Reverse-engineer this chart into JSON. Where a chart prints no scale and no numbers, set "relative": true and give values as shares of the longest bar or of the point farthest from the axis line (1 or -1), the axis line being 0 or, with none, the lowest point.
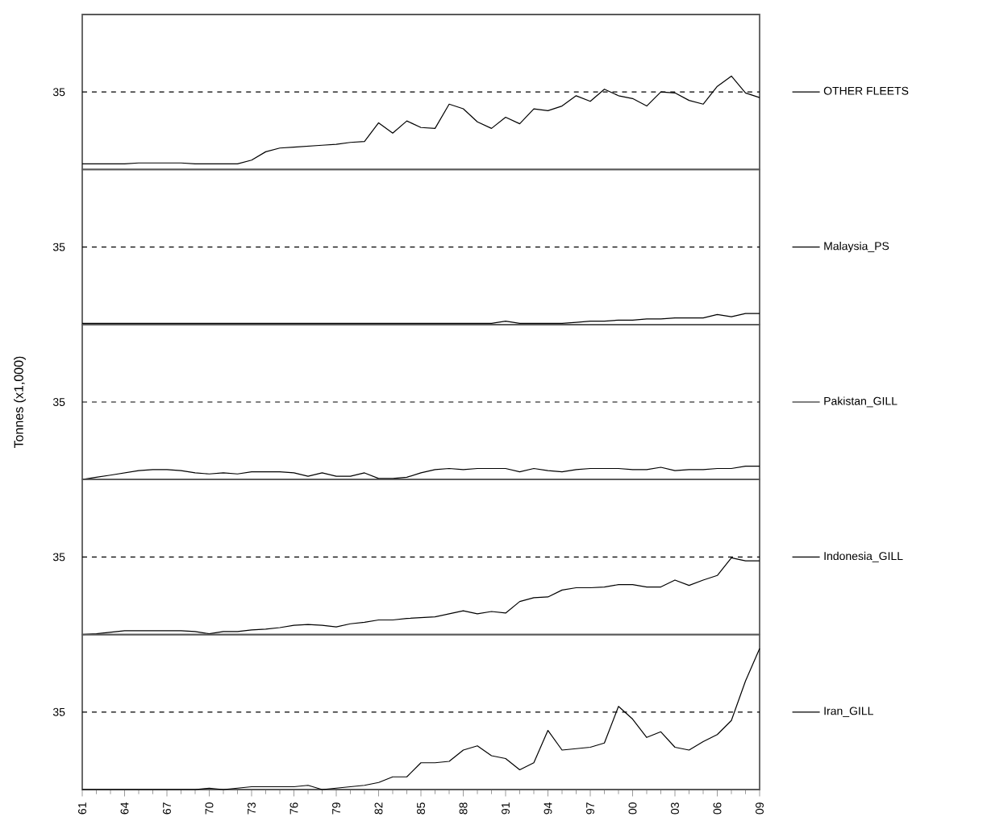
{
  "chart_data": [
    {
      "type": "line",
      "relative": true,
      "x": [
        1961,
        1962,
        1963,
        1964,
        1965,
        1966,
        1967,
        1968,
        1969,
        1970,
        1971,
        1972,
        1973,
        1974,
        1975,
        1976,
        1977,
        1978,
        1979,
        1980,
        1981,
        1982,
        1983,
        1984,
        1985,
        1986,
        1987,
        1988,
        1989,
        1990,
        1991,
        1992,
        1993,
        1994,
        1995,
        1996,
        1997,
        1998,
        1999,
        2000,
        2001,
        2002,
        2003,
        2004,
        2005,
        2006,
        2007,
        2008,
        2009
      ],
      "xlim": [
        1961,
        2009
      ],
      "legend": "right",
      "tick_labels": false,
      "marker": "none",
      "line_style": "solid",
      "annotations": [
        "35"
      ],
      "ref_lines": [
        {
          "axis": "y",
          "value": 0.83,
          "line_style": "dashed",
          "color": "#000000"
        }
      ],
      "series": [
        {
          "name": "OTHER FLEETS",
          "color": "#000000",
          "values": [
            0.06,
            0.06,
            0.06,
            0.06,
            0.07,
            0.07,
            0.07,
            0.07,
            0.06,
            0.06,
            0.06,
            0.06,
            0.1,
            0.19,
            0.23,
            0.24,
            0.25,
            0.26,
            0.27,
            0.29,
            0.3,
            0.5,
            0.39,
            0.52,
            0.45,
            0.44,
            0.7,
            0.65,
            0.51,
            0.44,
            0.56,
            0.49,
            0.65,
            0.63,
            0.68,
            0.79,
            0.73,
            0.86,
            0.79,
            0.76,
            0.68,
            0.83,
            0.82,
            0.74,
            0.7,
            0.89,
            1,
            0.82,
            0.77
          ]
        }
      ]
    },
    {
      "type": "line",
      "relative": true,
      "x": [
        1961,
        1962,
        1963,
        1964,
        1965,
        1966,
        1967,
        1968,
        1969,
        1970,
        1971,
        1972,
        1973,
        1974,
        1975,
        1976,
        1977,
        1978,
        1979,
        1980,
        1981,
        1982,
        1983,
        1984,
        1985,
        1986,
        1987,
        1988,
        1989,
        1990,
        1991,
        1992,
        1993,
        1994,
        1995,
        1996,
        1997,
        1998,
        1999,
        2000,
        2001,
        2002,
        2003,
        2004,
        2005,
        2006,
        2007,
        2008,
        2009
      ],
      "xlim": [
        1961,
        2009
      ],
      "legend": "right",
      "tick_labels": false,
      "marker": "none",
      "line_style": "solid",
      "annotations": [
        "35"
      ],
      "ref_lines": [
        {
          "axis": "y",
          "value": 7,
          "line_style": "dashed",
          "color": "#000000"
        }
      ],
      "series": [
        {
          "name": "Malaysia_PS",
          "color": "#000000",
          "values": [
            0.1,
            0.1,
            0.1,
            0.1,
            0.1,
            0.1,
            0.1,
            0.1,
            0.1,
            0.1,
            0.1,
            0.1,
            0.1,
            0.1,
            0.1,
            0.1,
            0.1,
            0.1,
            0.1,
            0.1,
            0.1,
            0.1,
            0.1,
            0.1,
            0.1,
            0.1,
            0.1,
            0.1,
            0.1,
            0.1,
            0.3,
            0.1,
            0.1,
            0.1,
            0.1,
            0.2,
            0.3,
            0.3,
            0.4,
            0.4,
            0.5,
            0.5,
            0.6,
            0.6,
            0.6,
            0.9,
            0.7,
            1,
            1
          ]
        }
      ]
    },
    {
      "type": "line",
      "relative": true,
      "ylabel": "Tonnes (x1,000)",
      "x": [
        1961,
        1962,
        1963,
        1964,
        1965,
        1966,
        1967,
        1968,
        1969,
        1970,
        1971,
        1972,
        1973,
        1974,
        1975,
        1976,
        1977,
        1978,
        1979,
        1980,
        1981,
        1982,
        1983,
        1984,
        1985,
        1986,
        1987,
        1988,
        1989,
        1990,
        1991,
        1992,
        1993,
        1994,
        1995,
        1996,
        1997,
        1998,
        1999,
        2000,
        2001,
        2002,
        2003,
        2004,
        2005,
        2006,
        2007,
        2008,
        2009
      ],
      "xlim": [
        1961,
        2009
      ],
      "legend": "right",
      "tick_labels": false,
      "marker": "none",
      "line_style": "solid",
      "annotations": [
        "35"
      ],
      "ref_lines": [
        {
          "axis": "y",
          "value": 5.83,
          "line_style": "dashed",
          "color": "#000000"
        }
      ],
      "series": [
        {
          "name": "Pakistan_GILL",
          "color": "#000000",
          "values": [
            0,
            0.17,
            0.33,
            0.5,
            0.67,
            0.75,
            0.75,
            0.67,
            0.5,
            0.42,
            0.5,
            0.42,
            0.58,
            0.58,
            0.58,
            0.5,
            0.25,
            0.5,
            0.25,
            0.25,
            0.5,
            0.08,
            0.08,
            0.17,
            0.5,
            0.75,
            0.83,
            0.75,
            0.83,
            0.83,
            0.83,
            0.58,
            0.83,
            0.67,
            0.58,
            0.75,
            0.83,
            0.83,
            0.83,
            0.75,
            0.75,
            0.92,
            0.67,
            0.75,
            0.75,
            0.83,
            0.83,
            1,
            1
          ]
        }
      ]
    },
    {
      "type": "line",
      "relative": true,
      "x": [
        1961,
        1962,
        1963,
        1964,
        1965,
        1966,
        1967,
        1968,
        1969,
        1970,
        1971,
        1972,
        1973,
        1974,
        1975,
        1976,
        1977,
        1978,
        1979,
        1980,
        1981,
        1982,
        1983,
        1984,
        1985,
        1986,
        1987,
        1988,
        1989,
        1990,
        1991,
        1992,
        1993,
        1994,
        1995,
        1996,
        1997,
        1998,
        1999,
        2000,
        2001,
        2002,
        2003,
        2004,
        2005,
        2006,
        2007,
        2008,
        2009
      ],
      "xlim": [
        1961,
        2009
      ],
      "legend": "right",
      "tick_labels": false,
      "marker": "none",
      "line_style": "solid",
      "annotations": [
        "35"
      ],
      "ref_lines": [
        {
          "axis": "y",
          "value": 1.01,
          "line_style": "dashed",
          "color": "#000000"
        }
      ],
      "series": [
        {
          "name": "Indonesia_GILL",
          "color": "#000000",
          "values": [
            0,
            0.01,
            0.03,
            0.05,
            0.05,
            0.05,
            0.05,
            0.05,
            0.04,
            0.01,
            0.04,
            0.04,
            0.06,
            0.07,
            0.09,
            0.12,
            0.13,
            0.12,
            0.1,
            0.14,
            0.16,
            0.19,
            0.19,
            0.21,
            0.22,
            0.23,
            0.27,
            0.31,
            0.27,
            0.3,
            0.28,
            0.43,
            0.48,
            0.49,
            0.58,
            0.61,
            0.61,
            0.62,
            0.65,
            0.65,
            0.62,
            0.62,
            0.71,
            0.64,
            0.71,
            0.77,
            1,
            0.96,
            0.96
          ]
        }
      ]
    },
    {
      "type": "line",
      "relative": true,
      "x": [
        1961,
        1962,
        1963,
        1964,
        1965,
        1966,
        1967,
        1968,
        1969,
        1970,
        1971,
        1972,
        1973,
        1974,
        1975,
        1976,
        1977,
        1978,
        1979,
        1980,
        1981,
        1982,
        1983,
        1984,
        1985,
        1986,
        1987,
        1988,
        1989,
        1990,
        1991,
        1992,
        1993,
        1994,
        1995,
        1996,
        1997,
        1998,
        1999,
        2000,
        2001,
        2002,
        2003,
        2004,
        2005,
        2006,
        2007,
        2008,
        2009
      ],
      "xlim": [
        1961,
        2009
      ],
      "legend": "right",
      "tick_labels": "x",
      "marker": "none",
      "line_style": "solid",
      "annotations": [
        "35"
      ],
      "ref_lines": [
        {
          "axis": "y",
          "value": 0.55,
          "line_style": "dashed",
          "color": "#000000"
        }
      ],
      "xticks": [
        {
          "value": 1961,
          "label": "61"
        },
        {
          "value": 1964,
          "label": "64"
        },
        {
          "value": 1967,
          "label": "67"
        },
        {
          "value": 1970,
          "label": "70"
        },
        {
          "value": 1973,
          "label": "73"
        },
        {
          "value": 1976,
          "label": "76"
        },
        {
          "value": 1979,
          "label": "79"
        },
        {
          "value": 1982,
          "label": "82"
        },
        {
          "value": 1985,
          "label": "85"
        },
        {
          "value": 1988,
          "label": "88"
        },
        {
          "value": 1991,
          "label": "91"
        },
        {
          "value": 1994,
          "label": "94"
        },
        {
          "value": 1997,
          "label": "97"
        },
        {
          "value": 2000,
          "label": "00"
        },
        {
          "value": 2003,
          "label": "03"
        },
        {
          "value": 2006,
          "label": "06"
        },
        {
          "value": 2009,
          "label": "09"
        }
      ],
      "series": [
        {
          "name": "Iran_GILL",
          "color": "#000000",
          "values": [
            0,
            0,
            0,
            0,
            0,
            0,
            0,
            0,
            0,
            0.01,
            0,
            0.01,
            0.02,
            0.02,
            0.02,
            0.02,
            0.03,
            0,
            0.01,
            0.02,
            0.03,
            0.05,
            0.09,
            0.09,
            0.19,
            0.19,
            0.2,
            0.28,
            0.31,
            0.24,
            0.22,
            0.14,
            0.19,
            0.42,
            0.28,
            0.29,
            0.3,
            0.33,
            0.59,
            0.5,
            0.37,
            0.41,
            0.3,
            0.28,
            0.34,
            0.39,
            0.49,
            0.77,
            1
          ]
        }
      ]
    }
  ]
}
